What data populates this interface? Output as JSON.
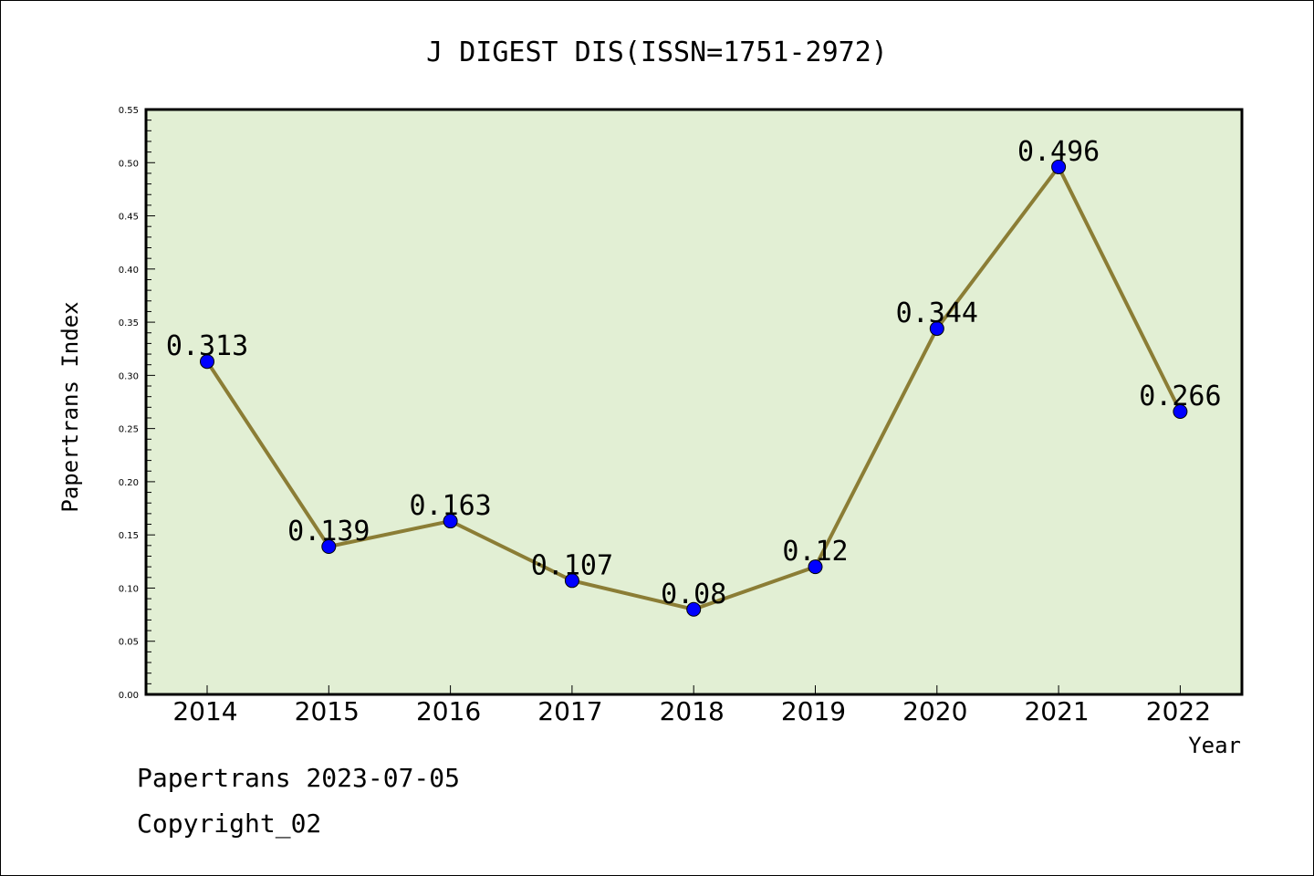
{
  "chart_data": {
    "type": "line",
    "title": "J DIGEST DIS(ISSN=1751-2972)",
    "xlabel": "Year",
    "ylabel": "Papertrans Index",
    "categories": [
      "2014",
      "2015",
      "2016",
      "2017",
      "2018",
      "2019",
      "2020",
      "2021",
      "2022"
    ],
    "values": [
      0.313,
      0.139,
      0.163,
      0.107,
      0.08,
      0.12,
      0.344,
      0.496,
      0.266
    ],
    "data_labels": [
      "0.313",
      "0.139",
      "0.163",
      "0.107",
      "0.08",
      "0.12",
      "0.344",
      "0.496",
      "0.266"
    ],
    "ylim": [
      0,
      0.55
    ],
    "yticks": [
      "0.00",
      "0.05",
      "0.10",
      "0.15",
      "0.20",
      "0.25",
      "0.30",
      "0.35",
      "0.40",
      "0.45",
      "0.50",
      "0.55"
    ],
    "grid": false,
    "legend": "none",
    "colors": {
      "plot_background": "#e2efd4",
      "line": "#8b7d35",
      "marker": "#0000ff"
    }
  },
  "footer": {
    "line1": "Papertrans 2023-07-05",
    "line2": "Copyright_02"
  }
}
